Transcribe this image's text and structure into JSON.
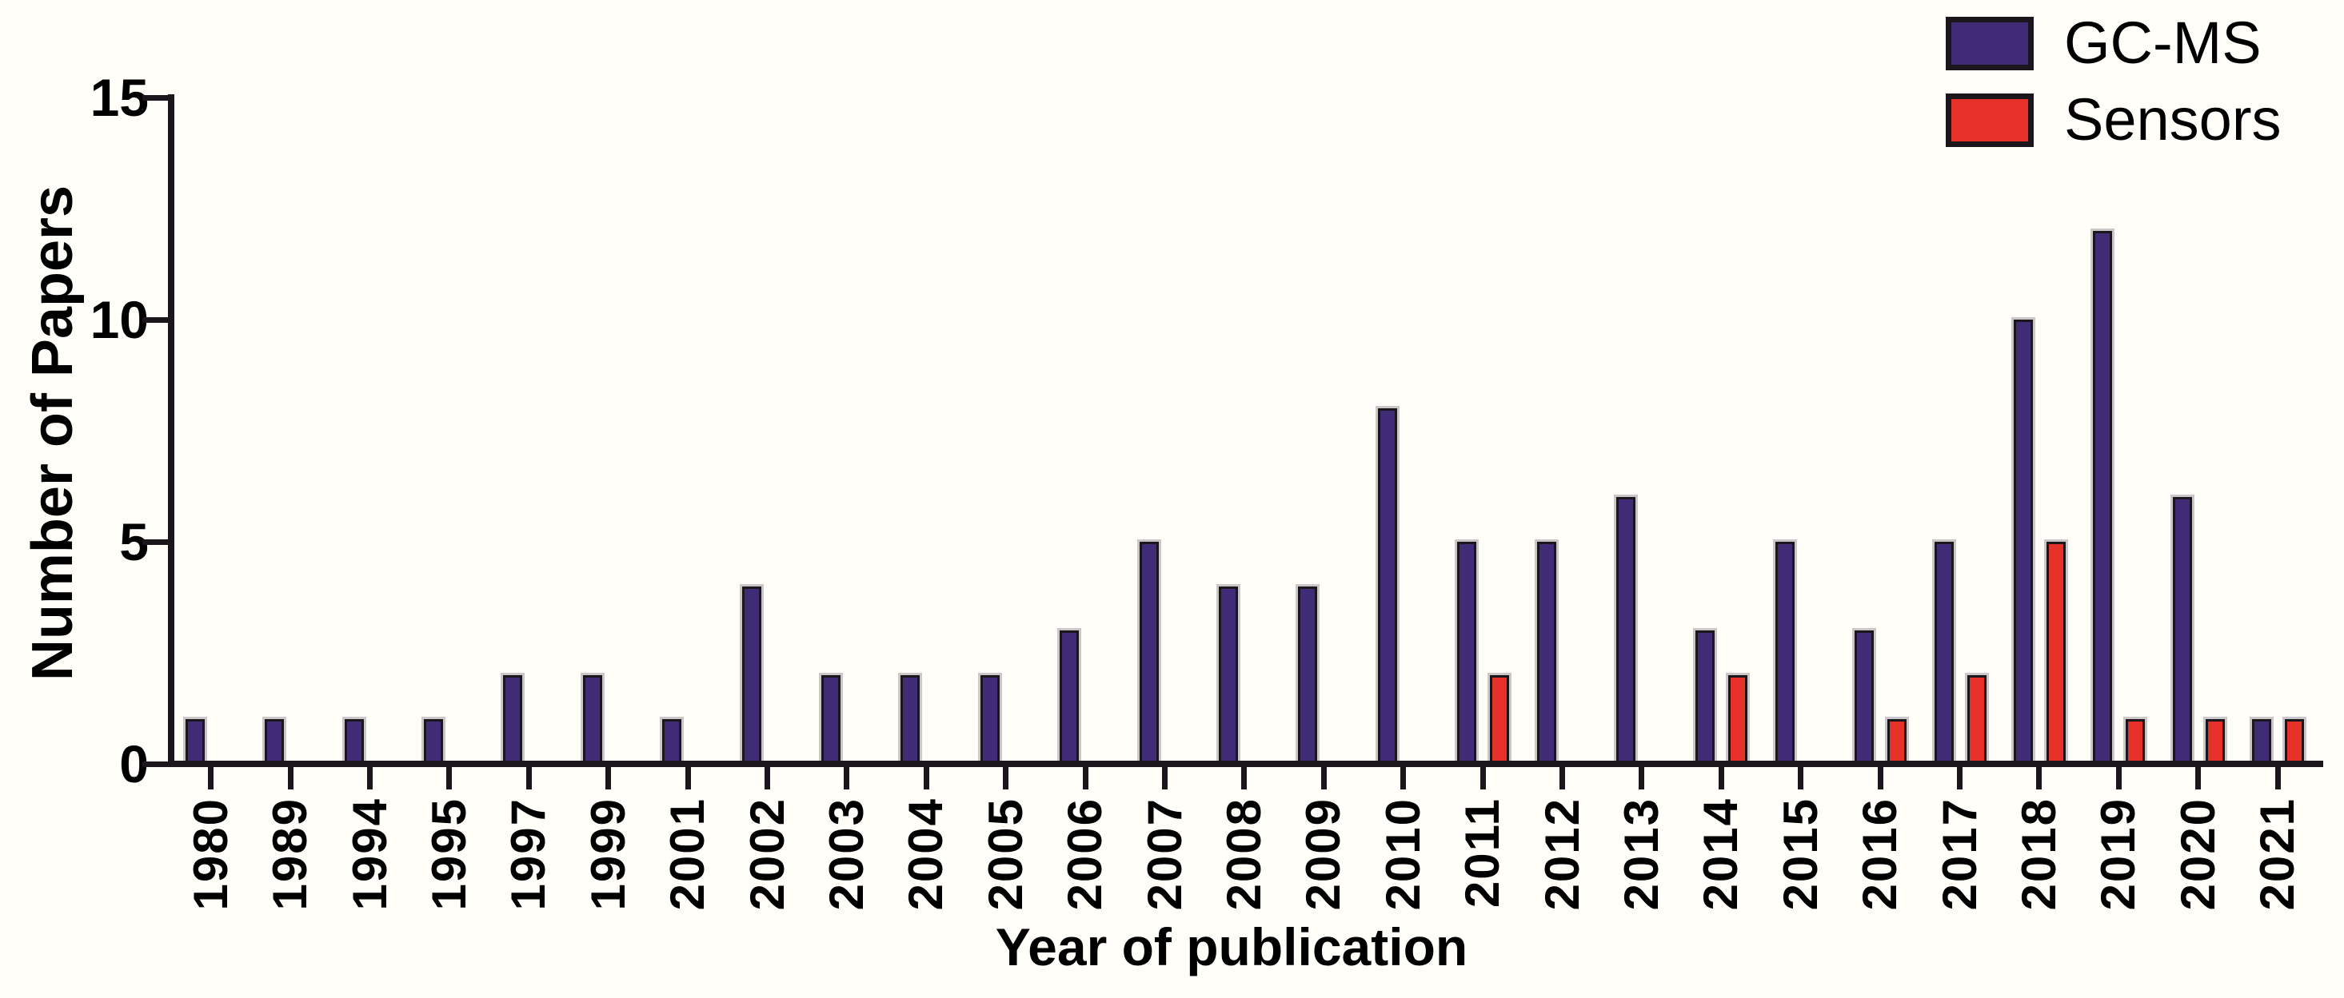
{
  "chart_data": {
    "type": "bar",
    "title": "",
    "xlabel": "Year of publication",
    "ylabel": "Number of Papers",
    "ylim": [
      0,
      15
    ],
    "yticks": [
      0,
      5,
      10,
      15
    ],
    "grid": false,
    "legend_position": "top-right",
    "categories": [
      "1980",
      "1989",
      "1994",
      "1995",
      "1997",
      "1999",
      "2001",
      "2002",
      "2003",
      "2004",
      "2005",
      "2006",
      "2007",
      "2008",
      "2009",
      "2010",
      "2011",
      "2012",
      "2013",
      "2014",
      "2015",
      "2016",
      "2017",
      "2018",
      "2019",
      "2020",
      "2021"
    ],
    "series": [
      {
        "name": "GC-MS",
        "color": "#3f2b76",
        "values": [
          1,
          1,
          1,
          1,
          2,
          2,
          1,
          4,
          2,
          2,
          2,
          3,
          5,
          4,
          4,
          8,
          5,
          5,
          6,
          3,
          5,
          3,
          5,
          10,
          12,
          6,
          1
        ]
      },
      {
        "name": "Sensors",
        "color": "#e63128",
        "values": [
          0,
          0,
          0,
          0,
          0,
          0,
          0,
          0,
          0,
          0,
          0,
          0,
          0,
          0,
          0,
          0,
          2,
          0,
          0,
          2,
          0,
          1,
          2,
          5,
          1,
          1,
          1
        ]
      }
    ]
  },
  "colors": {
    "axis": "#1a161c",
    "background": "#fffef9",
    "bar_outline": "#1a161c",
    "bar_shadow": "#c9c7c8"
  }
}
